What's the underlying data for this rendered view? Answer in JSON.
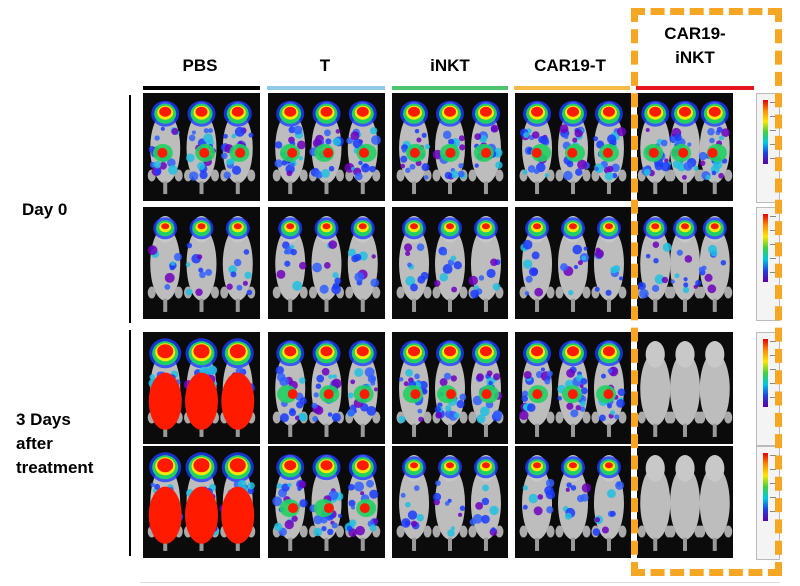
{
  "columns": [
    {
      "label": "PBS",
      "color": "#000000"
    },
    {
      "label": "T",
      "color": "#2a9fd8"
    },
    {
      "label": "iNKT",
      "color": "#1aa84a"
    },
    {
      "label": "CAR19-T",
      "color": "#f5a623"
    },
    {
      "label": "CAR19-\niNKT",
      "color": "#e8141c"
    }
  ],
  "rows": [
    {
      "label": "Day 0"
    },
    {
      "label": "3 Days\nafter\ntreatment"
    }
  ],
  "colors": {
    "highlight_border": "#f5a623",
    "panel_background": "#0b0b0b"
  }
}
